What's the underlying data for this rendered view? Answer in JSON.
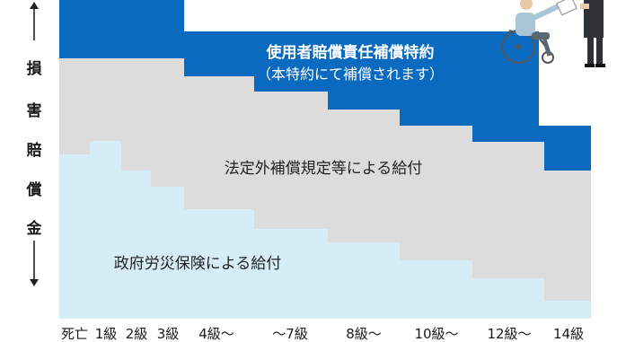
{
  "y_axis_label": [
    "損",
    "害",
    "賠",
    "償",
    "金"
  ],
  "layers": {
    "employer_liability": {
      "label": "使用者賠償責任補償特約",
      "sublabel": "（本特約にて補償されます）",
      "color": "#0a6abf"
    },
    "statutory_extra": {
      "label": "法定外補償規定等による給付",
      "color": "#dcdcdc"
    },
    "government_insurance": {
      "label": "政府労災保険による給付",
      "color": "#d6edf8"
    }
  },
  "categories": [
    "死亡",
    "1級",
    "2級",
    "3級",
    "4級～",
    "～7級",
    "8級～",
    "10級～",
    "12級～",
    "14級"
  ],
  "icons": {
    "top_right": "wheelchair-handover-illustration"
  }
}
